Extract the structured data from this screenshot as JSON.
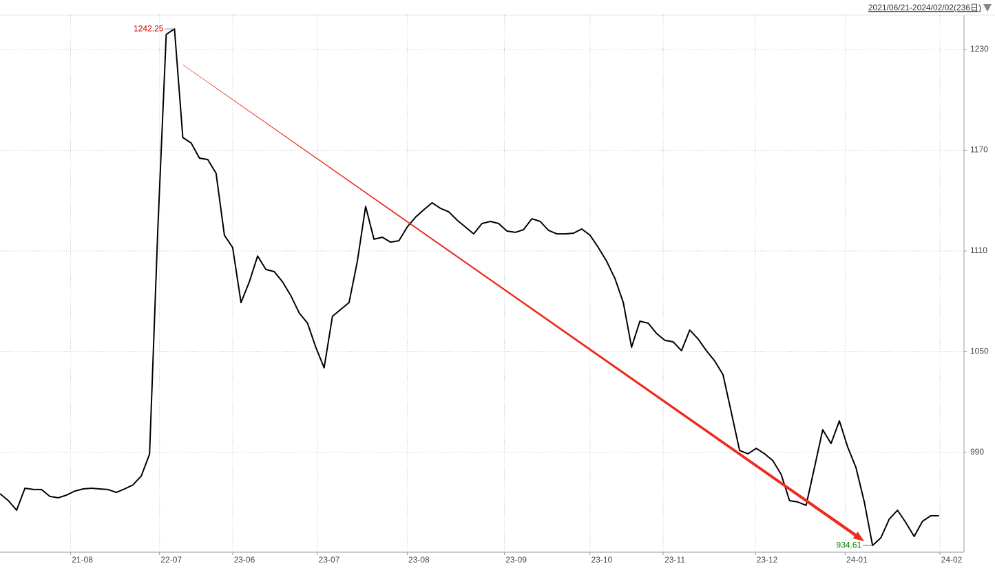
{
  "chart_data": {
    "type": "line",
    "range_label": "2021/06/21-2024/02/02(236日)",
    "series": [
      {
        "color": "#000000",
        "values": [
          965.4,
          961.3,
          955.6,
          968.7,
          968,
          967.9,
          963.8,
          963,
          964.6,
          967,
          968.3,
          968.7,
          968.3,
          967.9,
          966.2,
          968.3,
          970.7,
          976,
          989,
          1124,
          1239,
          1242.25,
          1177.6,
          1174.3,
          1165.3,
          1164.5,
          1156.3,
          1119.4,
          1112,
          1079.3,
          1091.6,
          1107,
          1099,
          1097.7,
          1091.6,
          1083.4,
          1073.1,
          1067,
          1052.7,
          1040.4,
          1071.1,
          1075.2,
          1079.3,
          1103.9,
          1136.6,
          1117,
          1118.2,
          1115.3,
          1116.1,
          1124.3,
          1130.1,
          1134.6,
          1138.7,
          1135.4,
          1133.3,
          1128.4,
          1124.3,
          1120.2,
          1126.4,
          1127.6,
          1126.4,
          1121.9,
          1121.1,
          1122.7,
          1129.2,
          1127.6,
          1122.3,
          1120.2,
          1120.2,
          1120.6,
          1123.1,
          1119.4,
          1112,
          1103.9,
          1093.6,
          1079.3,
          1052.7,
          1068.2,
          1067,
          1060.9,
          1056.8,
          1055.9,
          1050.6,
          1062.9,
          1057.6,
          1050.6,
          1044.5,
          1036.3,
          1013.8,
          991.2,
          989.2,
          992.5,
          989.2,
          985.1,
          976.9,
          961.3,
          960.5,
          958.5,
          981,
          1003.5,
          995.3,
          1008.8,
          993.3,
          981,
          960.5,
          934.61,
          939.2,
          950.3,
          955.6,
          948.2,
          940,
          949,
          952.3,
          952.3
        ]
      }
    ],
    "xlim": [
      0,
      116
    ],
    "xticks": [
      {
        "value": 8.5,
        "label": "21-08"
      },
      {
        "value": 19.2,
        "label": "22-07"
      },
      {
        "value": 28,
        "label": "23-06"
      },
      {
        "value": 38.2,
        "label": "23-07"
      },
      {
        "value": 49,
        "label": "23-08"
      },
      {
        "value": 60.7,
        "label": "23-09"
      },
      {
        "value": 71,
        "label": "23-10"
      },
      {
        "value": 79.8,
        "label": "23-11"
      },
      {
        "value": 90.9,
        "label": "23-12"
      },
      {
        "value": 101.7,
        "label": "24-01"
      },
      {
        "value": 113.1,
        "label": "24-02"
      }
    ],
    "ylim": [
      930.6,
      1250.5
    ],
    "yticks": [
      990,
      1050,
      1110,
      1170,
      1230
    ],
    "grid": true,
    "annotations": [
      {
        "text": "1242.25",
        "x": 21,
        "y": 1242.25,
        "color": "#cc0000"
      },
      {
        "text": "934.61",
        "x": 105,
        "y": 934.61,
        "color": "#008000"
      }
    ],
    "arrow_color": "#ee2a1c"
  }
}
